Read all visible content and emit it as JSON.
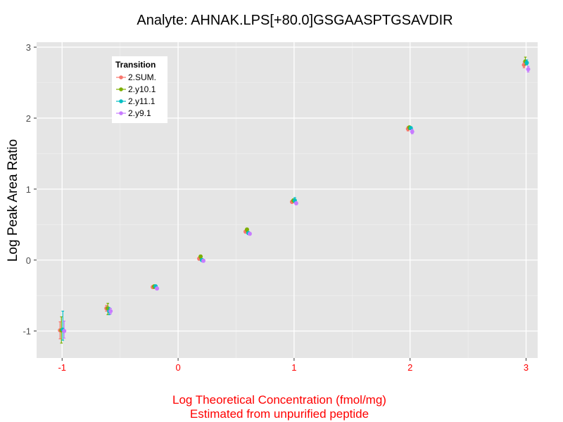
{
  "chart_data": {
    "type": "scatter",
    "title": "Analyte: AHNAK.LPS[+80.0]GSGAASPTGSAVDIR",
    "xlabel_line1": "Log Theoretical Concentration (fmol/mg)",
    "xlabel_line2": "Estimated from unpurified peptide",
    "ylabel": "Log Peak Area Ratio",
    "xlim": [
      -1.22,
      3.1
    ],
    "ylim": [
      -1.38,
      3.07
    ],
    "xticks": [
      -1,
      0,
      1,
      2,
      3
    ],
    "xtick_labels": [
      "-1",
      "0",
      "1",
      "2",
      "3"
    ],
    "yticks": [
      -1,
      0,
      1,
      2,
      3
    ],
    "ytick_labels": [
      "-1",
      "0",
      "1",
      "2",
      "3"
    ],
    "x_label_color": "#ff0000",
    "legend": {
      "title": "Transition",
      "position": "top-left"
    },
    "series": [
      {
        "name": "2.SUM.",
        "color": "#f8766d",
        "points": [
          {
            "x": -1.0,
            "y": -0.99,
            "lo": -1.11,
            "hi": -0.87
          },
          {
            "x": -0.6,
            "y": -0.68,
            "lo": -0.72,
            "hi": -0.64
          },
          {
            "x": -0.2,
            "y": -0.38,
            "lo": -0.4,
            "hi": -0.36
          },
          {
            "x": 0.2,
            "y": 0.02,
            "lo": 0.0,
            "hi": 0.04
          },
          {
            "x": 0.6,
            "y": 0.4,
            "lo": 0.38,
            "hi": 0.42
          },
          {
            "x": 1.0,
            "y": 0.82,
            "lo": 0.8,
            "hi": 0.84
          },
          {
            "x": 2.0,
            "y": 1.85,
            "lo": 1.82,
            "hi": 1.88
          },
          {
            "x": 3.0,
            "y": 2.75,
            "lo": 2.71,
            "hi": 2.79
          }
        ]
      },
      {
        "name": "2.y10.1",
        "color": "#7cae00",
        "points": [
          {
            "x": -1.0,
            "y": -0.99,
            "lo": -1.17,
            "hi": -0.8
          },
          {
            "x": -0.6,
            "y": -0.68,
            "lo": -0.77,
            "hi": -0.61
          },
          {
            "x": -0.2,
            "y": -0.37,
            "lo": -0.4,
            "hi": -0.35
          },
          {
            "x": 0.2,
            "y": 0.05,
            "lo": 0.02,
            "hi": 0.07
          },
          {
            "x": 0.6,
            "y": 0.43,
            "lo": 0.4,
            "hi": 0.45
          },
          {
            "x": 1.0,
            "y": 0.84,
            "lo": 0.82,
            "hi": 0.86
          },
          {
            "x": 2.0,
            "y": 1.87,
            "lo": 1.84,
            "hi": 1.89
          },
          {
            "x": 3.0,
            "y": 2.8,
            "lo": 2.75,
            "hi": 2.86
          }
        ]
      },
      {
        "name": "2.y11.1",
        "color": "#00bfc4",
        "points": [
          {
            "x": -1.0,
            "y": -0.98,
            "lo": -1.13,
            "hi": -0.72
          },
          {
            "x": -0.6,
            "y": -0.72,
            "lo": -0.77,
            "hi": -0.67
          },
          {
            "x": -0.2,
            "y": -0.37,
            "lo": -0.39,
            "hi": -0.35
          },
          {
            "x": 0.2,
            "y": 0.0,
            "lo": -0.02,
            "hi": 0.02
          },
          {
            "x": 0.6,
            "y": 0.38,
            "lo": 0.36,
            "hi": 0.4
          },
          {
            "x": 1.0,
            "y": 0.84,
            "lo": 0.81,
            "hi": 0.88
          },
          {
            "x": 2.0,
            "y": 1.86,
            "lo": 1.84,
            "hi": 1.88
          },
          {
            "x": 3.0,
            "y": 2.78,
            "lo": 2.75,
            "hi": 2.82
          }
        ]
      },
      {
        "name": "2.y9.1",
        "color": "#c77cff",
        "points": [
          {
            "x": -1.0,
            "y": -1.0,
            "lo": -1.1,
            "hi": -0.86
          },
          {
            "x": -0.6,
            "y": -0.72,
            "lo": -0.76,
            "hi": -0.68
          },
          {
            "x": -0.2,
            "y": -0.4,
            "lo": -0.42,
            "hi": -0.38
          },
          {
            "x": 0.2,
            "y": -0.01,
            "lo": -0.03,
            "hi": 0.01
          },
          {
            "x": 0.6,
            "y": 0.37,
            "lo": 0.35,
            "hi": 0.39
          },
          {
            "x": 1.0,
            "y": 0.8,
            "lo": 0.78,
            "hi": 0.82
          },
          {
            "x": 2.0,
            "y": 1.81,
            "lo": 1.78,
            "hi": 1.84
          },
          {
            "x": 3.0,
            "y": 2.69,
            "lo": 2.65,
            "hi": 2.73
          }
        ]
      }
    ]
  }
}
